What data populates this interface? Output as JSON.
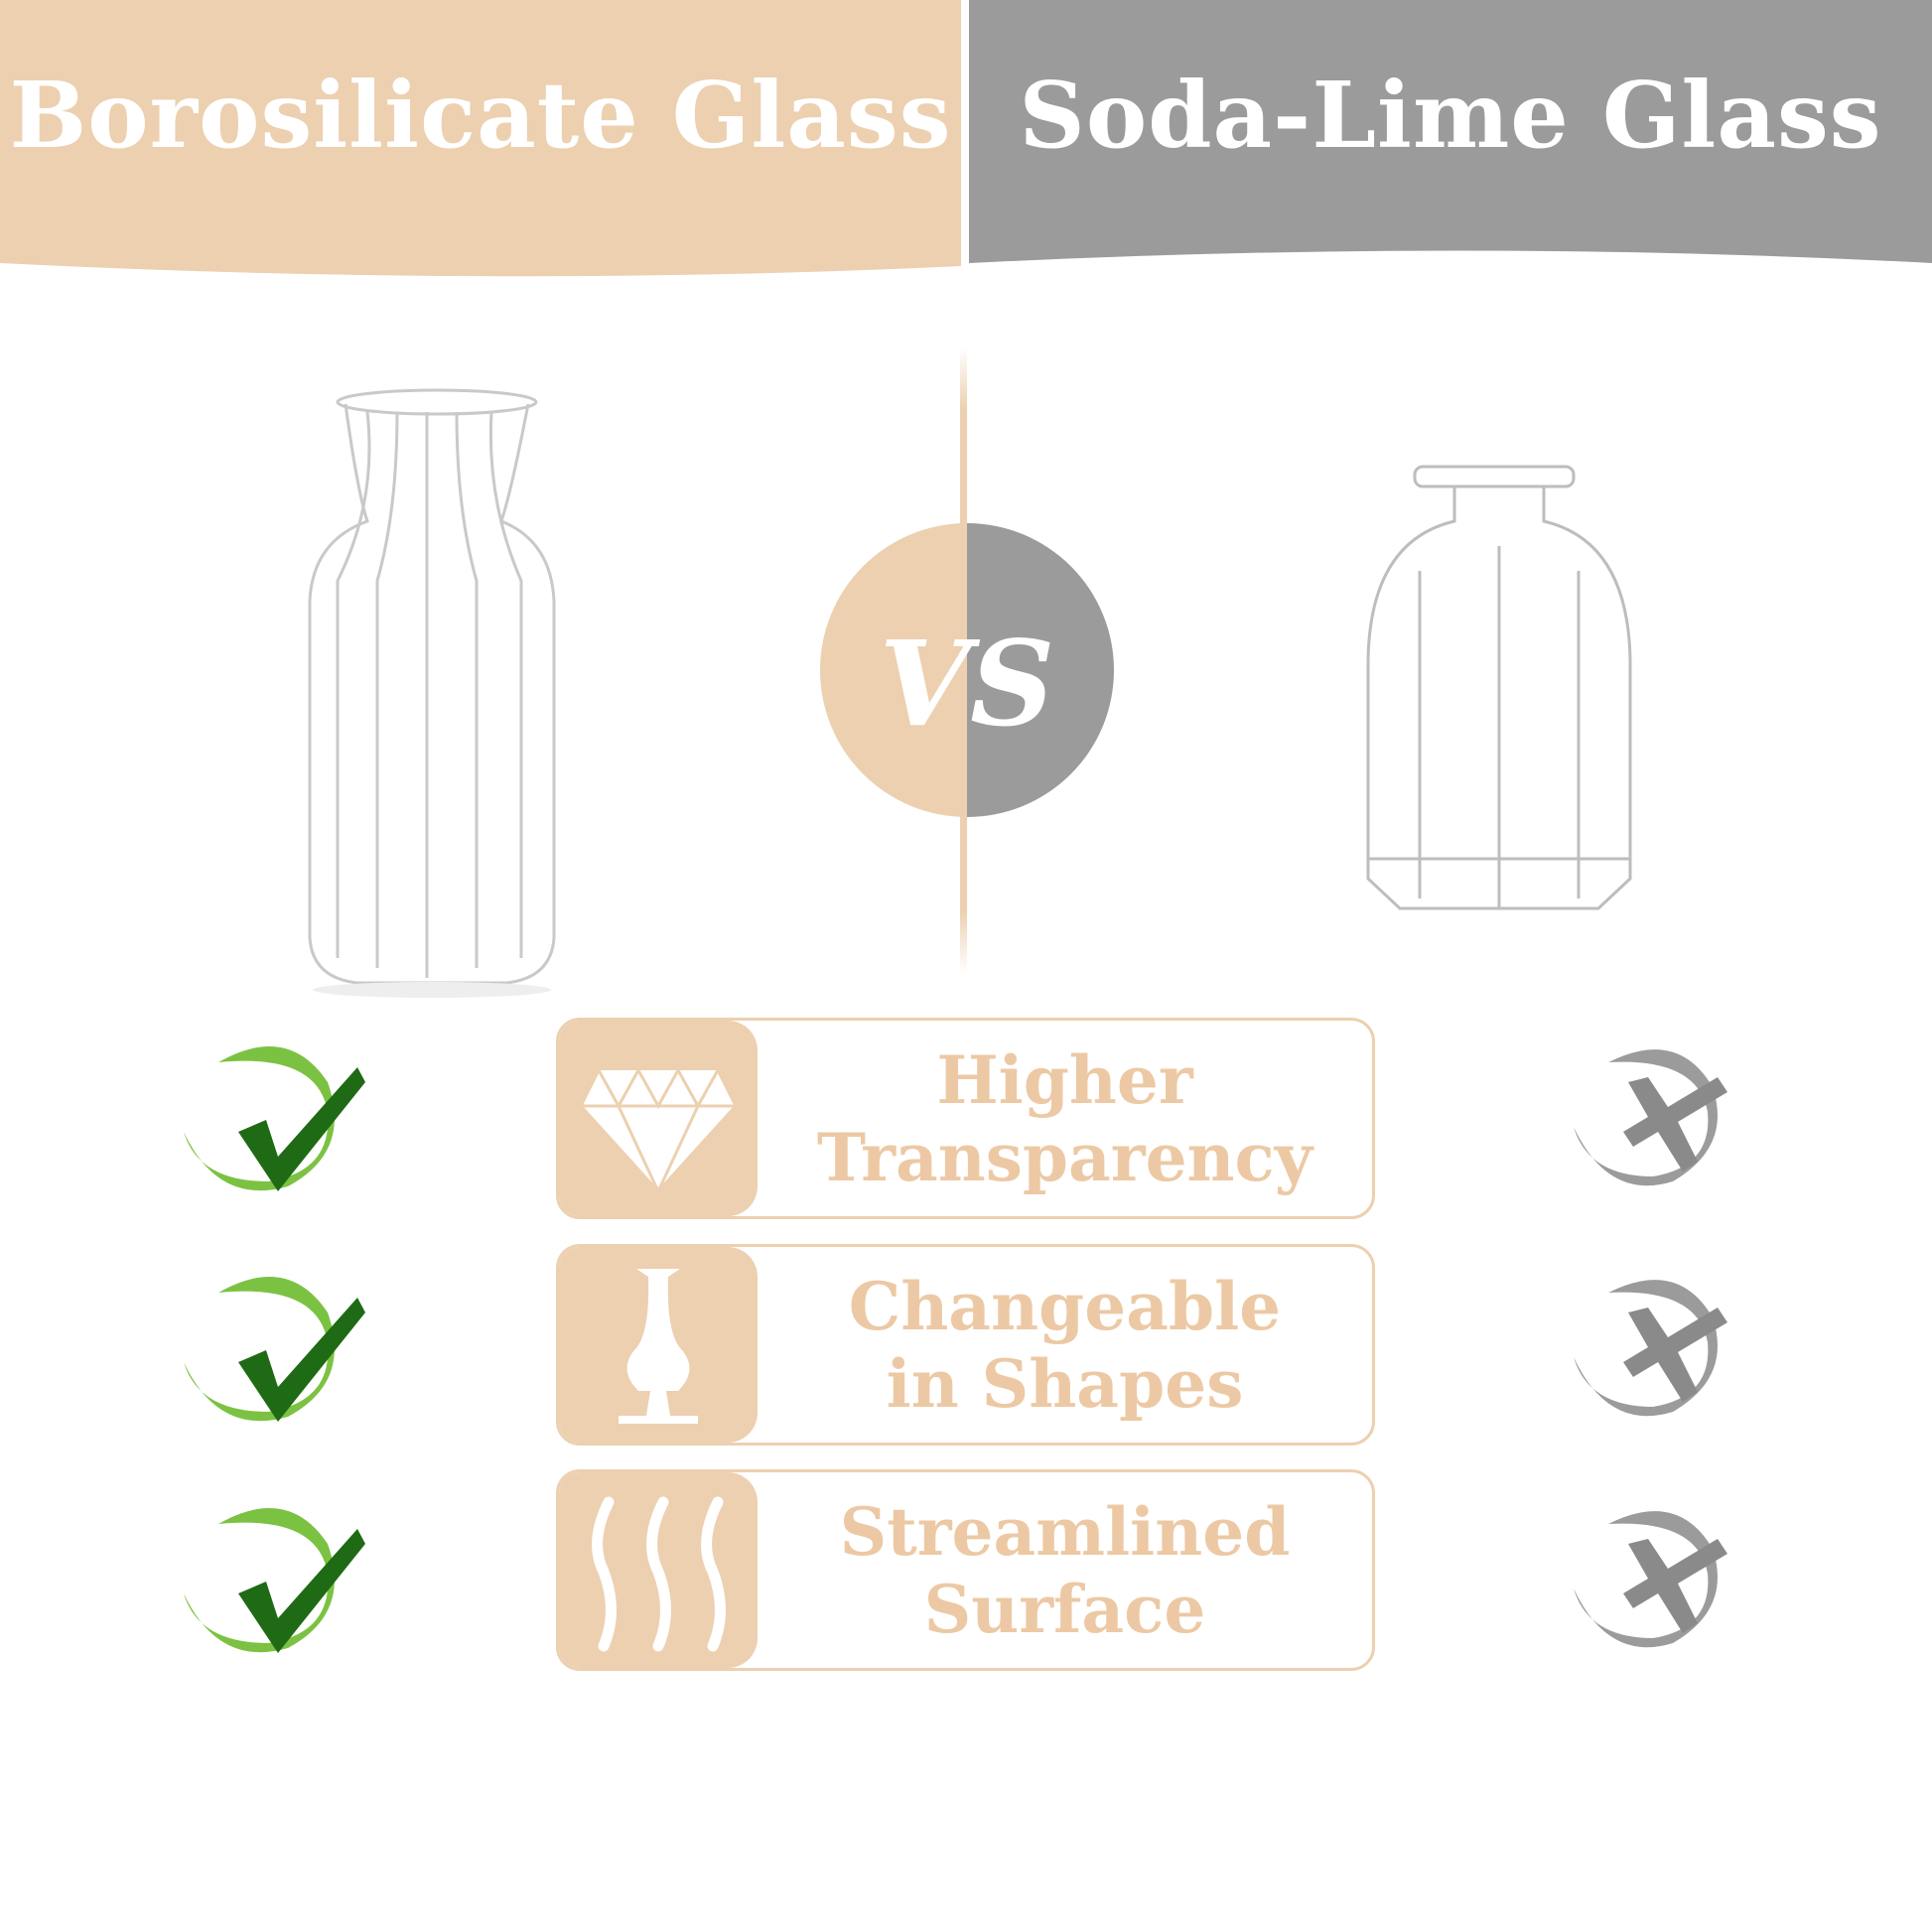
{
  "header": {
    "left_title": "Borosilicate Glass",
    "right_title": "Soda-Lime Glass"
  },
  "vs_label": "VS",
  "colors": {
    "tan": "#ecd0b0",
    "gray": "#9b9b9b",
    "feature_text": "#ecc9a4",
    "check_light": "#7cc242",
    "check_dark": "#1f6a14"
  },
  "features": [
    {
      "icon": "diamond-icon",
      "line1": "Higher",
      "line2": "Transparency",
      "borosilicate": "check",
      "soda_lime": "cross"
    },
    {
      "icon": "vase-icon",
      "line1": "Changeable",
      "line2": "in Shapes",
      "borosilicate": "check",
      "soda_lime": "cross"
    },
    {
      "icon": "waves-icon",
      "line1": "Streamlined",
      "line2": "Surface",
      "borosilicate": "check",
      "soda_lime": "cross"
    }
  ]
}
